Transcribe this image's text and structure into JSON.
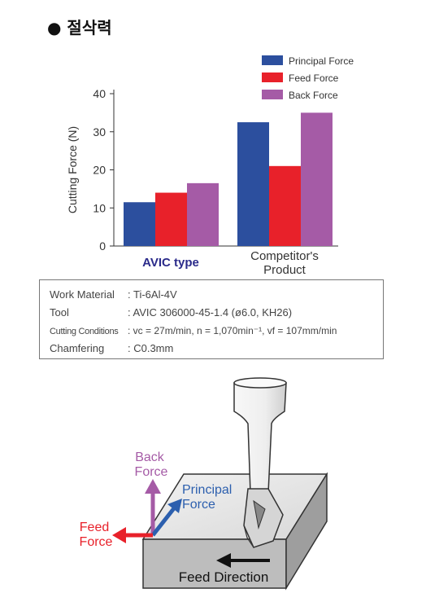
{
  "heading": "절삭력",
  "chart_data": {
    "type": "bar",
    "categories": [
      "AVIC type",
      "Competitor's\nProduct"
    ],
    "series": [
      {
        "name": "Principal Force",
        "values": [
          11.5,
          32.5
        ]
      },
      {
        "name": "Feed Force",
        "values": [
          14,
          21
        ]
      },
      {
        "name": "Back Force",
        "values": [
          16.5,
          35
        ]
      }
    ],
    "ylabel": "Cutting Force (N)",
    "ylim": [
      0,
      40
    ],
    "yticks": [
      0,
      10,
      20,
      30,
      40
    ],
    "legend_position": "top-right",
    "colors": [
      "#2c4f9e",
      "#e8212a",
      "#a55ba6"
    ]
  },
  "conditions": [
    {
      "label": "Work Material",
      "value": ": Ti-6Al-4V"
    },
    {
      "label": "Tool",
      "value": ": AVIC 306000-45-1.4  (ø6.0, KH26)"
    },
    {
      "label": "Cutting Conditions",
      "value": ": vc = 27m/min, n = 1,070min⁻¹, vf = 107mm/min"
    },
    {
      "label": "Chamfering",
      "value": ": C0.3mm"
    }
  ],
  "diagram": {
    "back_force": [
      "Back",
      "Force"
    ],
    "principal_force": [
      "Principal",
      "Force"
    ],
    "feed_force": [
      "Feed",
      "Force"
    ],
    "feed_direction": "Feed Direction"
  }
}
